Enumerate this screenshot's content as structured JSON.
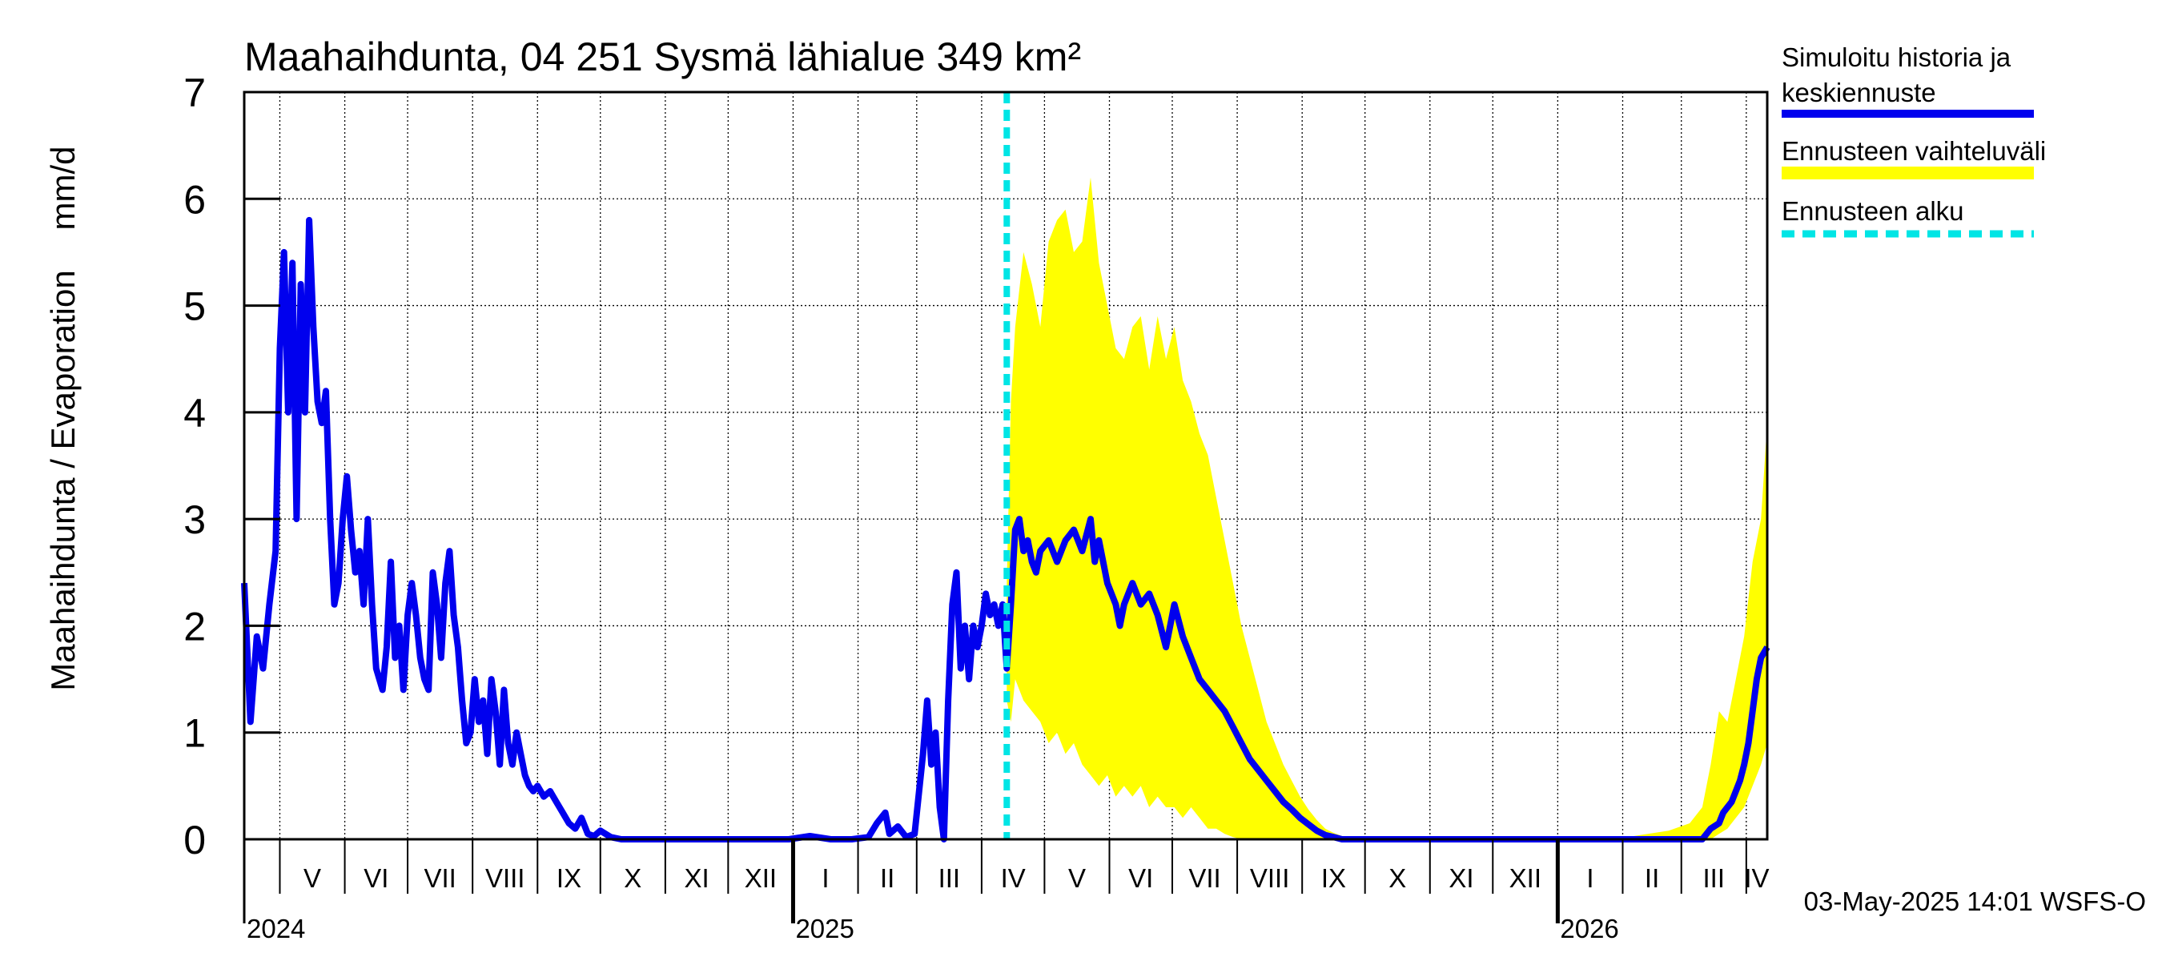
{
  "chart_data": {
    "type": "area",
    "title": "Maahaihdunta, 04 251 Sysmä lähialue 349 km²",
    "ylabel_left": "Maahaihdunta / Evaporation",
    "ylabel_unit": "mm/d",
    "ylim": [
      0,
      7
    ],
    "yticks": [
      "0",
      "1",
      "2",
      "3",
      "4",
      "5",
      "6",
      "7"
    ],
    "x_range_days": [
      0,
      727
    ],
    "x_start_date": "2024-04-14",
    "forecast_start_day": 364,
    "months": [
      {
        "label": "V",
        "start": 17
      },
      {
        "label": "VI",
        "start": 48
      },
      {
        "label": "VII",
        "start": 78
      },
      {
        "label": "VIII",
        "start": 109
      },
      {
        "label": "IX",
        "start": 140
      },
      {
        "label": "X",
        "start": 170
      },
      {
        "label": "XI",
        "start": 201
      },
      {
        "label": "XII",
        "start": 231
      },
      {
        "label": "I",
        "start": 262
      },
      {
        "label": "II",
        "start": 293
      },
      {
        "label": "III",
        "start": 321
      },
      {
        "label": "IV",
        "start": 352
      },
      {
        "label": "V",
        "start": 382
      },
      {
        "label": "VI",
        "start": 413
      },
      {
        "label": "VII",
        "start": 443
      },
      {
        "label": "VIII",
        "start": 474
      },
      {
        "label": "IX",
        "start": 505
      },
      {
        "label": "X",
        "start": 535
      },
      {
        "label": "XI",
        "start": 566
      },
      {
        "label": "XII",
        "start": 596
      },
      {
        "label": "I",
        "start": 627
      },
      {
        "label": "II",
        "start": 658
      },
      {
        "label": "III",
        "start": 686
      },
      {
        "label": "IV",
        "start": 717
      }
    ],
    "years": [
      {
        "label": "2024",
        "day": 0
      },
      {
        "label": "2025",
        "day": 262
      },
      {
        "label": "2026",
        "day": 627
      }
    ],
    "series": [
      {
        "name": "Simuloitu historia ja keskiennuste",
        "color": "#0000ee",
        "points": [
          [
            0,
            2.4
          ],
          [
            3,
            1.1
          ],
          [
            6,
            1.9
          ],
          [
            9,
            1.6
          ],
          [
            12,
            2.2
          ],
          [
            15,
            2.7
          ],
          [
            17,
            4.6
          ],
          [
            19,
            5.5
          ],
          [
            21,
            4.0
          ],
          [
            23,
            5.4
          ],
          [
            25,
            3.0
          ],
          [
            27,
            5.2
          ],
          [
            29,
            4.0
          ],
          [
            31,
            5.8
          ],
          [
            33,
            4.8
          ],
          [
            35,
            4.1
          ],
          [
            37,
            3.9
          ],
          [
            39,
            4.2
          ],
          [
            41,
            3.0
          ],
          [
            43,
            2.2
          ],
          [
            45,
            2.4
          ],
          [
            47,
            3.0
          ],
          [
            49,
            3.4
          ],
          [
            51,
            2.9
          ],
          [
            53,
            2.5
          ],
          [
            55,
            2.7
          ],
          [
            57,
            2.2
          ],
          [
            59,
            3.0
          ],
          [
            61,
            2.2
          ],
          [
            63,
            1.6
          ],
          [
            66,
            1.4
          ],
          [
            68,
            1.8
          ],
          [
            70,
            2.6
          ],
          [
            72,
            1.7
          ],
          [
            74,
            2.0
          ],
          [
            76,
            1.4
          ],
          [
            78,
            2.1
          ],
          [
            80,
            2.4
          ],
          [
            82,
            2.1
          ],
          [
            84,
            1.7
          ],
          [
            86,
            1.5
          ],
          [
            88,
            1.4
          ],
          [
            90,
            2.5
          ],
          [
            92,
            2.2
          ],
          [
            94,
            1.7
          ],
          [
            96,
            2.4
          ],
          [
            98,
            2.7
          ],
          [
            100,
            2.1
          ],
          [
            102,
            1.8
          ],
          [
            104,
            1.3
          ],
          [
            106,
            0.9
          ],
          [
            108,
            1.0
          ],
          [
            110,
            1.5
          ],
          [
            112,
            1.1
          ],
          [
            114,
            1.3
          ],
          [
            116,
            0.8
          ],
          [
            118,
            1.5
          ],
          [
            120,
            1.2
          ],
          [
            122,
            0.7
          ],
          [
            124,
            1.4
          ],
          [
            126,
            0.9
          ],
          [
            128,
            0.7
          ],
          [
            130,
            1.0
          ],
          [
            132,
            0.8
          ],
          [
            134,
            0.6
          ],
          [
            136,
            0.5
          ],
          [
            138,
            0.45
          ],
          [
            140,
            0.5
          ],
          [
            143,
            0.4
          ],
          [
            146,
            0.45
          ],
          [
            149,
            0.35
          ],
          [
            152,
            0.25
          ],
          [
            155,
            0.15
          ],
          [
            158,
            0.1
          ],
          [
            161,
            0.2
          ],
          [
            164,
            0.05
          ],
          [
            167,
            0.03
          ],
          [
            170,
            0.08
          ],
          [
            175,
            0.02
          ],
          [
            180,
            0.0
          ],
          [
            200,
            0.0
          ],
          [
            230,
            0.0
          ],
          [
            260,
            0.0
          ],
          [
            270,
            0.03
          ],
          [
            280,
            0.0
          ],
          [
            290,
            0.0
          ],
          [
            298,
            0.02
          ],
          [
            302,
            0.15
          ],
          [
            306,
            0.25
          ],
          [
            308,
            0.05
          ],
          [
            312,
            0.12
          ],
          [
            316,
            0.02
          ],
          [
            320,
            0.05
          ],
          [
            324,
            0.8
          ],
          [
            326,
            1.3
          ],
          [
            328,
            0.7
          ],
          [
            330,
            1.0
          ],
          [
            332,
            0.3
          ],
          [
            334,
            0.0
          ],
          [
            336,
            1.3
          ],
          [
            338,
            2.2
          ],
          [
            340,
            2.5
          ],
          [
            342,
            1.6
          ],
          [
            344,
            2.0
          ],
          [
            346,
            1.5
          ],
          [
            348,
            2.0
          ],
          [
            350,
            1.8
          ],
          [
            352,
            2.0
          ],
          [
            354,
            2.3
          ],
          [
            356,
            2.1
          ],
          [
            358,
            2.2
          ],
          [
            360,
            2.0
          ],
          [
            362,
            2.2
          ],
          [
            364,
            1.6
          ],
          [
            366,
            2.2
          ],
          [
            368,
            2.9
          ],
          [
            370,
            3.0
          ],
          [
            372,
            2.7
          ],
          [
            374,
            2.8
          ],
          [
            376,
            2.6
          ],
          [
            378,
            2.5
          ],
          [
            380,
            2.7
          ],
          [
            384,
            2.8
          ],
          [
            388,
            2.6
          ],
          [
            392,
            2.8
          ],
          [
            396,
            2.9
          ],
          [
            400,
            2.7
          ],
          [
            404,
            3.0
          ],
          [
            406,
            2.6
          ],
          [
            408,
            2.8
          ],
          [
            412,
            2.4
          ],
          [
            416,
            2.2
          ],
          [
            418,
            2.0
          ],
          [
            420,
            2.2
          ],
          [
            424,
            2.4
          ],
          [
            428,
            2.2
          ],
          [
            432,
            2.3
          ],
          [
            436,
            2.1
          ],
          [
            440,
            1.8
          ],
          [
            444,
            2.2
          ],
          [
            448,
            1.9
          ],
          [
            452,
            1.7
          ],
          [
            456,
            1.5
          ],
          [
            460,
            1.4
          ],
          [
            464,
            1.3
          ],
          [
            468,
            1.2
          ],
          [
            472,
            1.05
          ],
          [
            476,
            0.9
          ],
          [
            480,
            0.75
          ],
          [
            484,
            0.65
          ],
          [
            488,
            0.55
          ],
          [
            492,
            0.45
          ],
          [
            496,
            0.35
          ],
          [
            500,
            0.28
          ],
          [
            504,
            0.2
          ],
          [
            508,
            0.14
          ],
          [
            512,
            0.08
          ],
          [
            516,
            0.04
          ],
          [
            520,
            0.02
          ],
          [
            524,
            0.0
          ],
          [
            560,
            0.0
          ],
          [
            600,
            0.0
          ],
          [
            640,
            0.0
          ],
          [
            680,
            0.0
          ],
          [
            696,
            0.0
          ],
          [
            700,
            0.1
          ],
          [
            704,
            0.15
          ],
          [
            706,
            0.25
          ],
          [
            708,
            0.3
          ],
          [
            710,
            0.35
          ],
          [
            712,
            0.45
          ],
          [
            714,
            0.55
          ],
          [
            716,
            0.7
          ],
          [
            718,
            0.9
          ],
          [
            720,
            1.2
          ],
          [
            722,
            1.5
          ],
          [
            724,
            1.7
          ],
          [
            727,
            1.8
          ]
        ]
      },
      {
        "name": "Ennusteen vaihteluväli",
        "color": "#ffff00",
        "points": [
          [
            364,
            1.3,
            2.4
          ],
          [
            366,
            1.1,
            4.1
          ],
          [
            368,
            1.5,
            4.8
          ],
          [
            372,
            1.3,
            5.5
          ],
          [
            376,
            1.2,
            5.2
          ],
          [
            380,
            1.1,
            4.8
          ],
          [
            384,
            0.9,
            5.6
          ],
          [
            388,
            1.0,
            5.8
          ],
          [
            392,
            0.8,
            5.9
          ],
          [
            396,
            0.9,
            5.5
          ],
          [
            400,
            0.7,
            5.6
          ],
          [
            404,
            0.6,
            6.2
          ],
          [
            408,
            0.5,
            5.4
          ],
          [
            412,
            0.6,
            5.0
          ],
          [
            416,
            0.4,
            4.6
          ],
          [
            420,
            0.5,
            4.5
          ],
          [
            424,
            0.4,
            4.8
          ],
          [
            428,
            0.5,
            4.9
          ],
          [
            432,
            0.3,
            4.4
          ],
          [
            436,
            0.4,
            4.9
          ],
          [
            440,
            0.3,
            4.5
          ],
          [
            444,
            0.3,
            4.8
          ],
          [
            448,
            0.2,
            4.3
          ],
          [
            452,
            0.3,
            4.1
          ],
          [
            456,
            0.2,
            3.8
          ],
          [
            460,
            0.1,
            3.6
          ],
          [
            464,
            0.1,
            3.2
          ],
          [
            468,
            0.05,
            2.8
          ],
          [
            472,
            0.02,
            2.4
          ],
          [
            476,
            0.0,
            2.0
          ],
          [
            480,
            0.0,
            1.7
          ],
          [
            484,
            0.0,
            1.4
          ],
          [
            488,
            0.0,
            1.1
          ],
          [
            492,
            0.0,
            0.9
          ],
          [
            496,
            0.0,
            0.7
          ],
          [
            500,
            0.0,
            0.55
          ],
          [
            504,
            0.0,
            0.4
          ],
          [
            508,
            0.0,
            0.28
          ],
          [
            512,
            0.0,
            0.18
          ],
          [
            516,
            0.0,
            0.1
          ],
          [
            520,
            0.0,
            0.06
          ],
          [
            524,
            0.0,
            0.03
          ],
          [
            530,
            0.0,
            0.01
          ],
          [
            560,
            0.0,
            0.0
          ],
          [
            620,
            0.0,
            0.0
          ],
          [
            660,
            0.0,
            0.02
          ],
          [
            680,
            0.0,
            0.08
          ],
          [
            690,
            0.0,
            0.15
          ],
          [
            696,
            0.0,
            0.3
          ],
          [
            700,
            0.0,
            0.7
          ],
          [
            704,
            0.05,
            1.2
          ],
          [
            708,
            0.1,
            1.1
          ],
          [
            712,
            0.2,
            1.5
          ],
          [
            716,
            0.3,
            1.9
          ],
          [
            720,
            0.5,
            2.6
          ],
          [
            724,
            0.7,
            3.0
          ],
          [
            727,
            0.9,
            3.9
          ]
        ]
      }
    ],
    "forecast_line": {
      "name": "Ennusteen alku",
      "day": 364,
      "color": "#00e5e5"
    },
    "legend": {
      "placement": "right",
      "entries": [
        {
          "label_line1": "Simuloitu historia ja",
          "label_line2": "keskiennuste",
          "color": "#0000ee",
          "style": "solid"
        },
        {
          "label_line1": "Ennusteen vaihteluväli",
          "color": "#ffff00",
          "style": "band"
        },
        {
          "label_line1": "Ennusteen alku",
          "color": "#00e5e5",
          "style": "dashed"
        }
      ]
    },
    "footer": "03-May-2025 14:01 WSFS-O"
  }
}
